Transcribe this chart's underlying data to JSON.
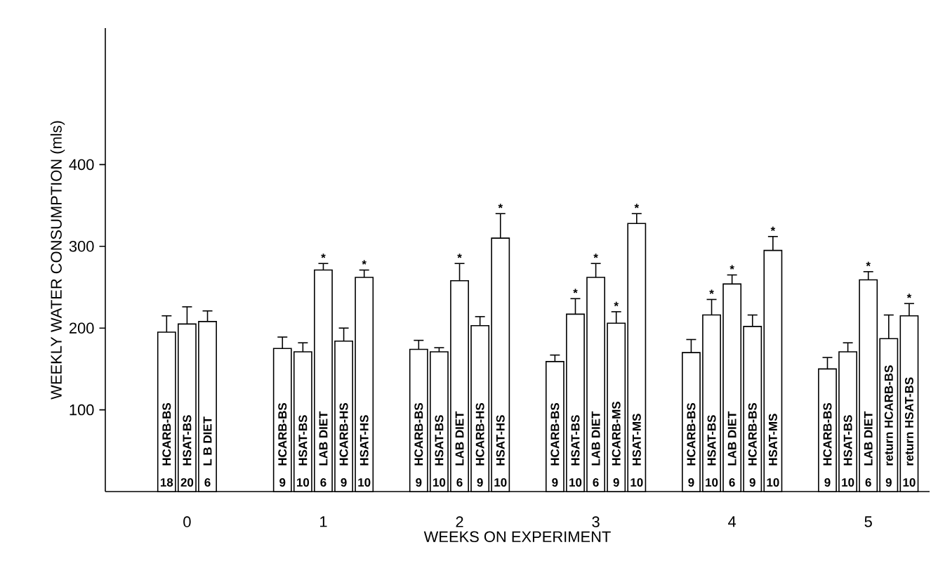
{
  "chart_data": {
    "type": "bar",
    "xlabel": "WEEKS ON EXPERIMENT",
    "ylabel": "WEEKLY WATER CONSUMPTION (mls)",
    "x": [
      -0.15,
      0,
      0.15,
      0.7,
      0.85,
      1,
      1.15,
      1.3,
      1.7,
      1.85,
      2,
      2.15,
      2.3,
      2.7,
      2.85,
      3,
      3.15,
      3.3,
      3.7,
      3.85,
      4,
      4.15,
      4.3,
      4.7,
      4.85,
      5,
      5.15,
      5.3
    ],
    "values": [
      195,
      205,
      208,
      175,
      171,
      271,
      184,
      262,
      174,
      171,
      258,
      203,
      310,
      159,
      217,
      262,
      206,
      328,
      170,
      216,
      254,
      202,
      295,
      150,
      171,
      259,
      187,
      215
    ],
    "errors": [
      20,
      21,
      13,
      14,
      11,
      8,
      16,
      9,
      11,
      5,
      21,
      11,
      30,
      8,
      19,
      17,
      14,
      12,
      16,
      19,
      11,
      14,
      17,
      14,
      11,
      10,
      29,
      15
    ],
    "color": "#ffffff",
    "xlim": [
      -0.6,
      5.45
    ],
    "ylim": [
      0,
      567
    ],
    "xticks": [
      0,
      1,
      2,
      3,
      4,
      5
    ],
    "yticks": [
      100,
      200,
      300,
      400
    ],
    "annotations": [
      "HCARB-BS",
      "HSAT-BS",
      "L B DIET",
      "HCARB-BS",
      "HSAT-BS",
      "LAB DIET",
      "HCARB-HS",
      "HSAT-HS",
      "HCARB-BS",
      "HSAT-BS",
      "LAB DIET",
      "HCARB-HS",
      "HSAT-HS",
      "HCARB-BS",
      "HSAT-BS",
      "LAB DIET",
      "HCARB-MS",
      "HSAT-MS",
      "HCARB-BS",
      "HSAT-BS",
      "LAB DIET",
      "HCARB-BS",
      "HSAT-MS",
      "HCARB-BS",
      "HSAT-BS",
      "LAB DIET",
      "return HCARB-BS",
      "return HSAT-BS",
      {
        "text": "18",
        "x": -0.15,
        "y": 4
      },
      {
        "text": "20",
        "x": 0,
        "y": 4
      },
      {
        "text": "6",
        "x": 0.15,
        "y": 4
      },
      {
        "text": "9",
        "x": 0.7,
        "y": 4
      },
      {
        "text": "10",
        "x": 0.85,
        "y": 4
      },
      {
        "text": "6",
        "x": 1,
        "y": 4
      },
      {
        "text": "9",
        "x": 1.15,
        "y": 4
      },
      {
        "text": "10",
        "x": 1.3,
        "y": 4
      },
      {
        "text": "9",
        "x": 1.7,
        "y": 4
      },
      {
        "text": "10",
        "x": 1.85,
        "y": 4
      },
      {
        "text": "6",
        "x": 2,
        "y": 4
      },
      {
        "text": "9",
        "x": 2.15,
        "y": 4
      },
      {
        "text": "10",
        "x": 2.3,
        "y": 4
      },
      {
        "text": "9",
        "x": 2.7,
        "y": 4
      },
      {
        "text": "10",
        "x": 2.85,
        "y": 4
      },
      {
        "text": "6",
        "x": 3,
        "y": 4
      },
      {
        "text": "9",
        "x": 3.15,
        "y": 4
      },
      {
        "text": "10",
        "x": 3.3,
        "y": 4
      },
      {
        "text": "9",
        "x": 3.7,
        "y": 4
      },
      {
        "text": "10",
        "x": 3.85,
        "y": 4
      },
      {
        "text": "6",
        "x": 4,
        "y": 4
      },
      {
        "text": "9",
        "x": 4.15,
        "y": 4
      },
      {
        "text": "10",
        "x": 4.3,
        "y": 4
      },
      {
        "text": "9",
        "x": 4.7,
        "y": 4
      },
      {
        "text": "10",
        "x": 4.85,
        "y": 4
      },
      {
        "text": "6",
        "x": 5,
        "y": 4
      },
      {
        "text": "9",
        "x": 5.15,
        "y": 4
      },
      {
        "text": "10",
        "x": 5.3,
        "y": 4
      },
      {
        "text": "*",
        "x": 1,
        "y": 279
      },
      {
        "text": "*",
        "x": 1.3,
        "y": 271
      },
      {
        "text": "*",
        "x": 2,
        "y": 279
      },
      {
        "text": "*",
        "x": 2.3,
        "y": 340
      },
      {
        "text": "*",
        "x": 2.85,
        "y": 236
      },
      {
        "text": "*",
        "x": 3,
        "y": 279
      },
      {
        "text": "*",
        "x": 3.15,
        "y": 220
      },
      {
        "text": "*",
        "x": 3.3,
        "y": 340
      },
      {
        "text": "*",
        "x": 3.85,
        "y": 235
      },
      {
        "text": "*",
        "x": 4,
        "y": 265
      },
      {
        "text": "*",
        "x": 4.3,
        "y": 312
      },
      {
        "text": "*",
        "x": 5,
        "y": 269
      },
      {
        "text": "*",
        "x": 5.3,
        "y": 230
      }
    ]
  }
}
